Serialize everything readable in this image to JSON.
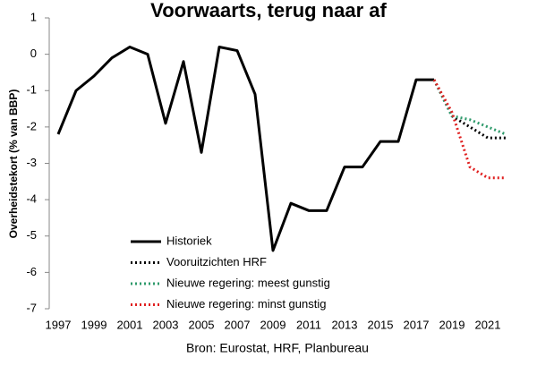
{
  "chart_data": {
    "type": "line",
    "title": "Voorwaarts, terug naar af",
    "y_label": "Overheidstekort (% van BBP)",
    "source": "Bron: Eurostat, HRF, Planbureau",
    "x": [
      1997,
      1998,
      1999,
      2000,
      2001,
      2002,
      2003,
      2004,
      2005,
      2006,
      2007,
      2008,
      2009,
      2010,
      2011,
      2012,
      2013,
      2014,
      2015,
      2016,
      2017,
      2018,
      2019,
      2020,
      2021,
      2022
    ],
    "series": [
      {
        "name": "Historiek",
        "color": "#000000",
        "line_style": "solid",
        "values": [
          -2.2,
          -1.0,
          -0.6,
          -0.1,
          0.2,
          0.0,
          -1.9,
          -0.2,
          -2.7,
          0.2,
          0.1,
          -1.1,
          -5.4,
          -4.1,
          -4.3,
          -4.3,
          -3.1,
          -3.1,
          -2.4,
          -2.4,
          -0.7,
          -0.7,
          null,
          null,
          null,
          null
        ]
      },
      {
        "name": "Vooruitzichten HRF",
        "color": "#000000",
        "line_style": "dotted",
        "values": [
          null,
          null,
          null,
          null,
          null,
          null,
          null,
          null,
          null,
          null,
          null,
          null,
          null,
          null,
          null,
          null,
          null,
          null,
          null,
          null,
          null,
          -0.7,
          -1.7,
          -2.0,
          -2.3,
          -2.3
        ]
      },
      {
        "name": "Nieuwe regering: meest gunstig",
        "color": "#2e9a6b",
        "line_style": "dotted",
        "values": [
          null,
          null,
          null,
          null,
          null,
          null,
          null,
          null,
          null,
          null,
          null,
          null,
          null,
          null,
          null,
          null,
          null,
          null,
          null,
          null,
          null,
          -0.7,
          -1.7,
          -1.8,
          -2.0,
          -2.2
        ]
      },
      {
        "name": "Nieuwe regering: minst gunstig",
        "color": "#e02020",
        "line_style": "dotted",
        "values": [
          null,
          null,
          null,
          null,
          null,
          null,
          null,
          null,
          null,
          null,
          null,
          null,
          null,
          null,
          null,
          null,
          null,
          null,
          null,
          null,
          null,
          -0.7,
          -1.6,
          -3.1,
          -3.4,
          -3.4
        ]
      }
    ],
    "xlim": [
      1996.5,
      2022.5
    ],
    "xticks": [
      1997,
      1999,
      2001,
      2003,
      2005,
      2007,
      2009,
      2011,
      2013,
      2015,
      2017,
      2019,
      2021
    ],
    "ylim": [
      -7,
      1
    ],
    "yticks": [
      -7,
      -6,
      -5,
      -4,
      -3,
      -2,
      -1,
      0,
      1
    ],
    "legend": "lower-left"
  }
}
